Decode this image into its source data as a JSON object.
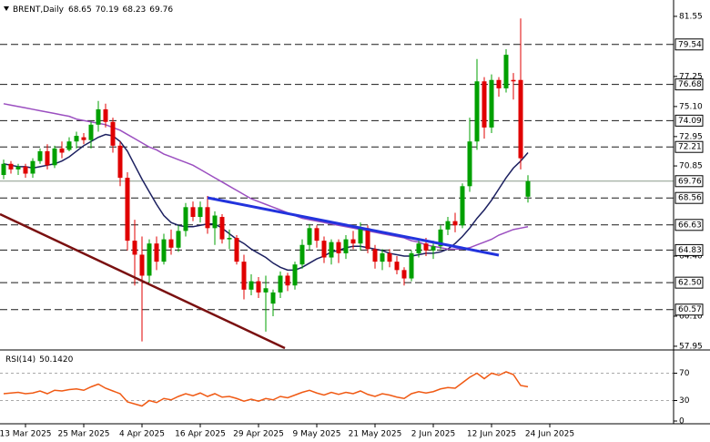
{
  "chart_data": {
    "type": "candlestick",
    "symbol": "BRENT,Daily",
    "up_color": "#00a000",
    "down_color": "#e00000",
    "ylim": [
      57.75,
      82.72
    ],
    "yticks": [
      81.55,
      77.25,
      {
        "value": 75.1,
        "label": "75.10"
      },
      72.95,
      70.85,
      {
        "value": 64.4,
        "label": "64.40"
      },
      {
        "value": 60.1,
        "label": "60.10"
      },
      57.95
    ],
    "levels": [
      79.54,
      76.68,
      74.09,
      72.21,
      68.56,
      66.63,
      64.83,
      {
        "value": 62.5,
        "label": "62.50"
      },
      60.57
    ],
    "level_color": "#1a1a1a",
    "last_price_color": "#8a9a8a",
    "open": [
      70.2,
      71.0,
      70.6,
      70.8,
      70.3,
      71.2,
      71.9,
      70.9,
      72.1,
      72.0,
      72.6,
      72.9,
      72.7,
      73.8,
      74.9,
      74.0,
      72.3,
      70.0,
      65.5,
      64.5,
      63.0,
      65.3,
      64.0,
      65.6,
      65.0,
      66.2,
      67.9,
      67.2,
      67.9,
      66.4,
      67.2,
      65.6,
      65.7,
      64.0,
      62.0,
      62.6,
      61.8,
      61.0,
      61.8,
      63.0,
      62.3,
      63.8,
      65.2,
      66.4,
      65.5,
      64.3,
      65.4,
      64.6,
      65.6,
      65.3,
      66.4,
      64.9,
      64.0,
      64.6,
      64.0,
      63.4,
      62.8,
      64.6,
      65.3,
      64.8,
      65.1,
      66.3,
      66.9,
      66.6,
      69.4,
      72.6,
      76.9,
      73.6,
      77.0,
      76.4,
      77.0,
      77.0,
      68.65
    ],
    "high": [
      71.3,
      71.2,
      71.0,
      71.0,
      71.4,
      72.1,
      72.4,
      72.3,
      72.6,
      72.9,
      73.3,
      73.2,
      74.0,
      75.5,
      75.3,
      74.3,
      72.6,
      70.4,
      67.0,
      65.8,
      65.6,
      65.8,
      66.0,
      66.3,
      66.6,
      68.2,
      68.3,
      68.3,
      68.7,
      67.6,
      67.4,
      66.3,
      65.9,
      64.5,
      63.1,
      62.9,
      63.0,
      62.0,
      63.3,
      63.2,
      64.0,
      65.6,
      66.7,
      66.6,
      65.8,
      65.6,
      65.6,
      65.9,
      66.2,
      66.8,
      66.6,
      65.2,
      64.9,
      64.9,
      64.4,
      63.6,
      64.8,
      65.6,
      65.7,
      65.5,
      66.6,
      67.2,
      67.5,
      69.6,
      74.3,
      78.5,
      77.2,
      77.4,
      77.2,
      79.2,
      77.5,
      81.4,
      70.19
    ],
    "low": [
      69.9,
      70.3,
      70.2,
      70.0,
      70.0,
      71.0,
      70.6,
      70.7,
      71.4,
      71.9,
      72.1,
      72.4,
      72.1,
      73.3,
      73.6,
      71.8,
      69.4,
      64.8,
      62.3,
      58.3,
      62.5,
      63.4,
      63.8,
      64.5,
      64.7,
      65.8,
      66.9,
      66.8,
      66.0,
      65.2,
      65.3,
      64.9,
      63.8,
      61.3,
      61.6,
      61.4,
      59.0,
      60.1,
      61.4,
      61.9,
      62.0,
      63.5,
      64.8,
      65.0,
      63.9,
      63.8,
      63.9,
      64.2,
      64.9,
      64.8,
      64.6,
      63.5,
      63.4,
      63.6,
      63.1,
      62.3,
      62.6,
      64.3,
      64.4,
      64.2,
      64.9,
      65.9,
      66.1,
      66.4,
      69.0,
      72.0,
      72.8,
      73.2,
      75.8,
      76.1,
      75.6,
      70.6,
      68.23
    ],
    "close": [
      71.0,
      70.6,
      70.8,
      70.3,
      71.2,
      71.9,
      70.9,
      72.1,
      71.8,
      72.6,
      73.0,
      72.7,
      73.8,
      74.9,
      74.0,
      72.3,
      70.0,
      65.5,
      64.5,
      63.0,
      65.3,
      64.0,
      65.6,
      65.0,
      66.2,
      67.9,
      67.2,
      67.9,
      66.4,
      67.3,
      65.6,
      65.7,
      64.0,
      62.0,
      62.6,
      61.8,
      62.1,
      61.8,
      63.0,
      62.3,
      63.8,
      65.2,
      66.4,
      65.5,
      64.3,
      65.4,
      64.6,
      65.6,
      65.3,
      66.4,
      64.9,
      64.0,
      64.6,
      64.0,
      63.4,
      62.8,
      64.6,
      65.3,
      64.8,
      65.1,
      66.3,
      66.9,
      66.6,
      69.4,
      72.6,
      76.9,
      73.6,
      77.0,
      76.4,
      78.8,
      76.9,
      71.4,
      69.76
    ],
    "series": [
      {
        "color": "#1c2060",
        "values": [
          71.0,
          70.9,
          70.8,
          70.8,
          70.7,
          70.8,
          70.9,
          71.0,
          71.2,
          71.5,
          71.9,
          72.3,
          72.6,
          72.9,
          73.1,
          73.0,
          72.6,
          71.9,
          70.9,
          69.9,
          69.0,
          68.1,
          67.3,
          66.8,
          66.6,
          66.5,
          66.5,
          66.6,
          66.7,
          66.7,
          66.4,
          66.0,
          65.6,
          65.3,
          64.9,
          64.6,
          64.3,
          63.9,
          63.6,
          63.4,
          63.4,
          63.6,
          63.9,
          64.2,
          64.4,
          64.7,
          64.8,
          65.0,
          65.1,
          65.1,
          65.0,
          64.9,
          64.8,
          64.6,
          64.5,
          64.4,
          64.4,
          64.5,
          64.6,
          64.6,
          64.7,
          64.9,
          65.3,
          65.8,
          66.4,
          67.1,
          67.7,
          68.4,
          69.2,
          70.0,
          70.7,
          71.2,
          71.8
        ]
      },
      {
        "color": "#9b4fc0",
        "values": [
          75.3,
          75.2,
          75.1,
          75.0,
          74.9,
          74.8,
          74.7,
          74.6,
          74.5,
          74.4,
          74.2,
          74.1,
          74.0,
          73.9,
          73.8,
          73.6,
          73.4,
          73.1,
          72.8,
          72.5,
          72.2,
          72.0,
          71.7,
          71.5,
          71.3,
          71.1,
          70.9,
          70.6,
          70.3,
          70.0,
          69.7,
          69.4,
          69.1,
          68.8,
          68.5,
          68.3,
          68.1,
          67.9,
          67.7,
          67.5,
          67.3,
          67.1,
          67.0,
          66.9,
          66.8,
          66.7,
          66.6,
          66.5,
          66.4,
          66.3,
          66.2,
          66.1,
          66.0,
          65.9,
          65.8,
          65.7,
          65.5,
          65.4,
          65.2,
          65.1,
          65.0,
          64.9,
          64.9,
          64.9,
          65.0,
          65.2,
          65.4,
          65.6,
          65.9,
          66.1,
          66.3,
          66.4,
          66.5
        ]
      }
    ],
    "rsi": {
      "title": "RSI(14)",
      "value_label": "50.1420",
      "color": "#f05a14",
      "ylim": [
        0,
        100
      ],
      "yticks": [
        70,
        30,
        0
      ],
      "levels": [
        70,
        30
      ],
      "values": [
        40,
        41,
        42,
        40,
        41,
        44,
        40,
        45,
        44,
        46,
        47,
        45,
        50,
        54,
        48,
        44,
        40,
        28,
        25,
        22,
        30,
        27,
        33,
        31,
        36,
        40,
        37,
        41,
        36,
        40,
        35,
        36,
        33,
        29,
        32,
        29,
        33,
        31,
        36,
        34,
        38,
        42,
        45,
        41,
        38,
        42,
        39,
        42,
        40,
        44,
        39,
        36,
        40,
        38,
        35,
        33,
        40,
        43,
        41,
        43,
        47,
        49,
        48,
        56,
        64,
        70,
        62,
        70,
        67,
        72,
        68,
        52,
        50.142
      ]
    },
    "xtick_labels": [
      "13 Mar 2025",
      "25 Mar 2025",
      "4 Apr 2025",
      "16 Apr 2025",
      "29 Apr 2025",
      "9 May 2025",
      "21 May 2025",
      "2 Jun 2025",
      "12 Jun 2025",
      "24 Jun 2025"
    ]
  }
}
